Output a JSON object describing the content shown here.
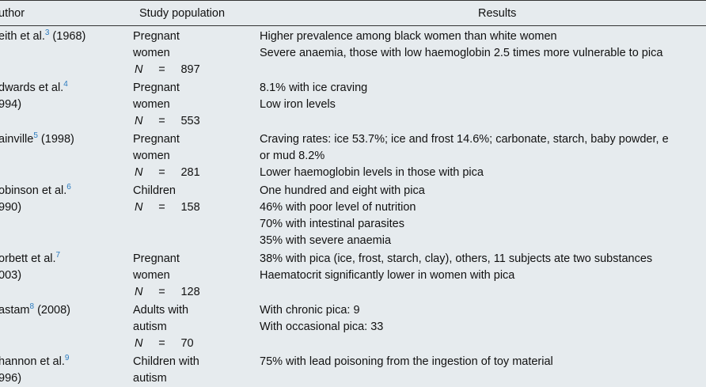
{
  "headers": {
    "author": "uthor",
    "population": "Study population",
    "results": "Results"
  },
  "rows": [
    {
      "author": [
        "eith et al.",
        "(1968)"
      ],
      "ref": "3",
      "author_line2": "",
      "population": [
        "Pregnant",
        "women"
      ],
      "n": "897",
      "results": [
        "Higher prevalence among black women than white women",
        "Severe anaemia, those with low haemoglobin 2.5 times more vulnerable to pica"
      ]
    },
    {
      "author": [
        "dwards et al.",
        ""
      ],
      "ref": "4",
      "author_line2": "994)",
      "population": [
        "Pregnant",
        "women"
      ],
      "n": "553",
      "results": [
        "8.1% with ice craving",
        "Low iron levels"
      ]
    },
    {
      "author": [
        "ainville",
        "(1998)"
      ],
      "ref": "5",
      "author_line2": "",
      "population": [
        "Pregnant",
        "women"
      ],
      "n": "281",
      "results": [
        "Craving rates: ice 53.7%; ice and frost 14.6%; carbonate, starch, baby powder, e",
        "or mud 8.2%",
        "Lower haemoglobin levels in those with pica"
      ]
    },
    {
      "author": [
        "obinson et al.",
        ""
      ],
      "ref": "6",
      "author_line2": "990)",
      "population": [
        "Children"
      ],
      "n": "158",
      "results": [
        "One hundred and eight with pica",
        "46% with poor level of nutrition",
        "70% with intestinal parasites",
        "35% with severe anaemia"
      ]
    },
    {
      "author": [
        "orbett et al.",
        ""
      ],
      "ref": "7",
      "author_line2": "003)",
      "population": [
        "Pregnant",
        "women"
      ],
      "n": "128",
      "results": [
        "38% with pica (ice, frost, starch, clay), others, 11 subjects ate two substances",
        "Haematocrit significantly lower in women with pica"
      ]
    },
    {
      "author": [
        "astam",
        "(2008)"
      ],
      "ref": "8",
      "author_line2": "",
      "population": [
        "Adults with",
        "autism"
      ],
      "n": "70",
      "results": [
        "With chronic pica: 9",
        "With occasional pica: 33"
      ]
    },
    {
      "author": [
        "hannon et al.",
        ""
      ],
      "ref": "9",
      "author_line2": "996)",
      "population": [
        "Children with",
        "autism"
      ],
      "n": "",
      "results": [
        "75% with lead poisoning from the ingestion of toy material"
      ]
    }
  ],
  "n_label": "N",
  "eq": "="
}
